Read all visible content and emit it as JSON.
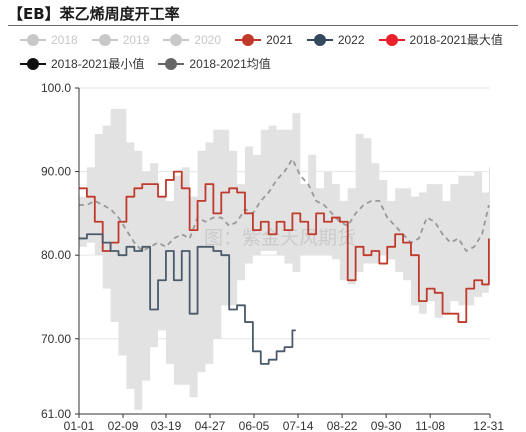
{
  "title": "【EB】苯乙烯周度开工率",
  "watermark": "图：紫金天风期货",
  "legend": [
    {
      "label": "2018",
      "color": "#c8c8c8",
      "faded": true
    },
    {
      "label": "2019",
      "color": "#c8c8c8",
      "faded": true
    },
    {
      "label": "2020",
      "color": "#c8c8c8",
      "faded": true
    },
    {
      "label": "2021",
      "color": "#c0392b",
      "faded": false
    },
    {
      "label": "2022",
      "color": "#34495e",
      "faded": false
    },
    {
      "label": "2018-2021最大值",
      "color": "#e8212b",
      "faded": false
    },
    {
      "label": "2018-2021最小值",
      "color": "#111111",
      "faded": false
    },
    {
      "label": "2018-2021均值",
      "color": "#666666",
      "faded": false
    }
  ],
  "chart_data": {
    "type": "line",
    "xlabel": "",
    "ylabel": "",
    "ylim": [
      61,
      100
    ],
    "xlim": [
      1,
      365
    ],
    "yticks": [
      "100.0",
      "90.00",
      "80.00",
      "70.00",
      "61.00"
    ],
    "ytick_values": [
      100,
      90,
      80,
      70,
      61
    ],
    "xticks": [
      "01-01",
      "02-09",
      "03-19",
      "04-27",
      "06-05",
      "07-14",
      "08-22",
      "09-30",
      "11-08",
      "12-31"
    ],
    "xtick_days": [
      1,
      40,
      78,
      117,
      156,
      195,
      234,
      273,
      312,
      365
    ],
    "grid": true,
    "band": {
      "name": "2018-2021 range",
      "color": "#e2e2e2",
      "days": [
        1,
        8,
        15,
        22,
        29,
        36,
        43,
        50,
        57,
        64,
        71,
        78,
        85,
        92,
        99,
        106,
        113,
        120,
        127,
        134,
        141,
        148,
        155,
        162,
        169,
        176,
        183,
        190,
        197,
        204,
        211,
        218,
        225,
        232,
        239,
        246,
        253,
        260,
        267,
        274,
        281,
        288,
        295,
        302,
        309,
        316,
        323,
        330,
        337,
        344,
        351,
        358,
        364
      ],
      "max": [
        87.0,
        90.5,
        94.5,
        95.5,
        97.5,
        97.5,
        93.5,
        92.5,
        90.0,
        91.0,
        87.0,
        86.5,
        89.5,
        90.5,
        87.0,
        92.5,
        93.5,
        95.0,
        95.0,
        92.5,
        88.5,
        93.0,
        92.0,
        95.0,
        95.5,
        95.0,
        95.0,
        97.0,
        88.5,
        92.0,
        88.0,
        90.0,
        88.5,
        86.5,
        88.0,
        94.5,
        94.0,
        91.0,
        89.0,
        86.5,
        88.0,
        88.0,
        87.0,
        87.5,
        88.5,
        88.5,
        86.5,
        88.5,
        89.5,
        89.5,
        90.0,
        87.5,
        90.5
      ],
      "min": [
        81.0,
        81.5,
        80.0,
        76.0,
        72.0,
        68.0,
        64.0,
        61.5,
        65.0,
        69.0,
        71.0,
        67.0,
        64.5,
        64.5,
        63.0,
        66.0,
        67.0,
        70.0,
        74.0,
        74.0,
        77.0,
        79.0,
        80.0,
        80.5,
        80.5,
        80.0,
        79.0,
        78.0,
        80.0,
        80.0,
        80.0,
        80.0,
        79.5,
        77.0,
        76.5,
        78.0,
        79.0,
        79.0,
        80.0,
        79.5,
        78.0,
        77.0,
        74.0,
        73.0,
        74.5,
        72.5,
        73.0,
        74.5,
        74.0,
        74.0,
        75.0,
        75.5,
        81.0
      ]
    },
    "series": [
      {
        "name": "2018-2021均值",
        "style": "dashed",
        "color": "#999999",
        "x": [
          1,
          8,
          15,
          22,
          29,
          36,
          43,
          50,
          57,
          64,
          71,
          78,
          85,
          92,
          99,
          106,
          113,
          120,
          127,
          134,
          141,
          148,
          155,
          162,
          169,
          176,
          183,
          190,
          197,
          204,
          211,
          218,
          225,
          232,
          239,
          246,
          253,
          260,
          267,
          274,
          281,
          288,
          295,
          302,
          309,
          316,
          323,
          330,
          337,
          344,
          351,
          358,
          364
        ],
        "y": [
          86.0,
          86.0,
          86.5,
          86.0,
          85.5,
          84.5,
          83.0,
          81.5,
          80.5,
          81.0,
          81.5,
          81.0,
          82.0,
          82.5,
          82.0,
          84.5,
          84.0,
          84.5,
          84.5,
          83.5,
          84.0,
          85.5,
          85.0,
          86.5,
          87.5,
          89.0,
          90.0,
          91.5,
          89.5,
          88.5,
          86.5,
          86.0,
          85.0,
          84.0,
          83.5,
          85.0,
          86.0,
          86.5,
          86.5,
          84.5,
          83.5,
          82.5,
          81.5,
          82.0,
          84.5,
          84.0,
          82.5,
          81.5,
          82.0,
          80.5,
          81.0,
          82.5,
          86.0
        ]
      },
      {
        "name": "2021",
        "style": "step",
        "color": "#c0392b",
        "x": [
          1,
          8,
          15,
          22,
          29,
          36,
          43,
          50,
          57,
          64,
          71,
          78,
          85,
          92,
          99,
          106,
          113,
          120,
          127,
          134,
          141,
          148,
          155,
          162,
          169,
          176,
          183,
          190,
          197,
          204,
          211,
          218,
          225,
          232,
          239,
          246,
          253,
          260,
          267,
          274,
          281,
          288,
          295,
          302,
          309,
          316,
          323,
          330,
          337,
          344,
          351,
          358,
          364
        ],
        "y": [
          88.0,
          87.0,
          84.0,
          80.5,
          81.5,
          84.0,
          87.0,
          88.0,
          88.5,
          88.5,
          87.0,
          89.0,
          90.0,
          88.0,
          83.0,
          86.5,
          88.5,
          85.0,
          87.5,
          88.0,
          87.5,
          85.0,
          83.0,
          84.0,
          82.5,
          84.0,
          83.0,
          85.0,
          84.0,
          82.5,
          85.0,
          84.0,
          84.5,
          84.0,
          77.0,
          81.0,
          80.0,
          80.5,
          79.0,
          81.0,
          82.5,
          81.5,
          80.0,
          74.5,
          76.0,
          75.5,
          73.0,
          73.0,
          72.0,
          76.0,
          77.0,
          76.5,
          82.0
        ]
      },
      {
        "name": "2022",
        "style": "step",
        "color": "#4a5a6a",
        "x": [
          1,
          8,
          15,
          22,
          29,
          36,
          43,
          50,
          57,
          64,
          71,
          78,
          85,
          92,
          99,
          106,
          113,
          120,
          127,
          134,
          141,
          148,
          155,
          162,
          169,
          176,
          183,
          190,
          193
        ],
        "y": [
          82.0,
          82.5,
          82.5,
          81.5,
          80.5,
          80.0,
          81.0,
          80.5,
          81.0,
          73.5,
          77.0,
          80.5,
          77.0,
          80.5,
          73.0,
          81.0,
          81.0,
          80.5,
          80.0,
          73.5,
          74.0,
          72.0,
          68.5,
          67.0,
          67.5,
          68.5,
          69.0,
          71.0,
          71.0
        ]
      }
    ]
  }
}
